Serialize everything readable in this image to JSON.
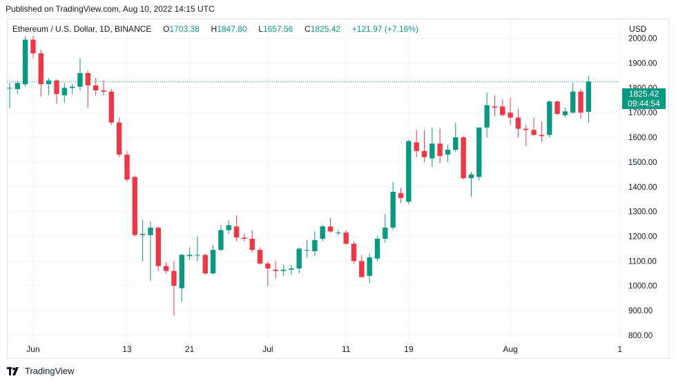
{
  "header": {
    "published": "Published on TradingView.com, Aug 10, 2022 14:15 UTC"
  },
  "legend": {
    "symbol": "Ethereum / U.S. Dollar, 1D, BINANCE",
    "o_label": "O",
    "o_value": "1703.38",
    "h_label": "H",
    "h_value": "1847.80",
    "l_label": "L",
    "l_value": "1657.56",
    "c_label": "C",
    "c_value": "1825.42",
    "change": "+121.97 (+7.16%)"
  },
  "axis": {
    "currency": "USD"
  },
  "last_price": {
    "price": "1825.42",
    "countdown": "09:44:54"
  },
  "footer": {
    "brand": "TradingView"
  },
  "colors": {
    "up": "#089981",
    "down": "#F23645",
    "grid": "#F0F3FA",
    "text": "#131722"
  },
  "chart_data": {
    "type": "candlestick",
    "y_axis": {
      "min": 780,
      "max": 2080,
      "ticks": [
        800,
        900,
        1000,
        1100,
        1200,
        1300,
        1400,
        1500,
        1600,
        1700,
        1800,
        1900,
        2000
      ],
      "tick_labels": [
        "800.00",
        "900.00",
        "1000.00",
        "1100.00",
        "1200.00",
        "1300.00",
        "1400.00",
        "1500.00",
        "1600.00",
        "1700.00",
        "1800.00",
        "1900.00",
        "2000.00"
      ]
    },
    "x_axis": {
      "labels": [
        {
          "day": 3,
          "label": "Jun"
        },
        {
          "day": 15,
          "label": "13"
        },
        {
          "day": 23,
          "label": "21"
        },
        {
          "day": 33,
          "label": "Jul"
        },
        {
          "day": 43,
          "label": "11"
        },
        {
          "day": 51,
          "label": "19"
        },
        {
          "day": 64,
          "label": "Aug"
        },
        {
          "day": 78,
          "label": "1"
        }
      ]
    },
    "candles": [
      {
        "o": 1800,
        "h": 1820,
        "l": 1718,
        "c": 1800
      },
      {
        "o": 1795,
        "h": 1830,
        "l": 1775,
        "c": 1820
      },
      {
        "o": 1815,
        "h": 2010,
        "l": 1805,
        "c": 1995
      },
      {
        "o": 1995,
        "h": 2010,
        "l": 1920,
        "c": 1940
      },
      {
        "o": 1940,
        "h": 1955,
        "l": 1765,
        "c": 1815
      },
      {
        "o": 1815,
        "h": 1840,
        "l": 1770,
        "c": 1830
      },
      {
        "o": 1830,
        "h": 1835,
        "l": 1735,
        "c": 1775
      },
      {
        "o": 1770,
        "h": 1820,
        "l": 1740,
        "c": 1800
      },
      {
        "o": 1800,
        "h": 1815,
        "l": 1775,
        "c": 1805
      },
      {
        "o": 1805,
        "h": 1920,
        "l": 1790,
        "c": 1860
      },
      {
        "o": 1860,
        "h": 1870,
        "l": 1720,
        "c": 1810
      },
      {
        "o": 1810,
        "h": 1840,
        "l": 1770,
        "c": 1790
      },
      {
        "o": 1790,
        "h": 1830,
        "l": 1770,
        "c": 1785
      },
      {
        "o": 1785,
        "h": 1795,
        "l": 1650,
        "c": 1660
      },
      {
        "o": 1660,
        "h": 1680,
        "l": 1520,
        "c": 1530
      },
      {
        "o": 1530,
        "h": 1545,
        "l": 1420,
        "c": 1430
      },
      {
        "o": 1440,
        "h": 1445,
        "l": 1200,
        "c": 1205
      },
      {
        "o": 1205,
        "h": 1265,
        "l": 1100,
        "c": 1210
      },
      {
        "o": 1205,
        "h": 1260,
        "l": 1020,
        "c": 1235
      },
      {
        "o": 1235,
        "h": 1240,
        "l": 1060,
        "c": 1080
      },
      {
        "o": 1080,
        "h": 1095,
        "l": 1050,
        "c": 1060
      },
      {
        "o": 1060,
        "h": 1100,
        "l": 880,
        "c": 1000
      },
      {
        "o": 990,
        "h": 1130,
        "l": 935,
        "c": 1125
      },
      {
        "o": 1120,
        "h": 1155,
        "l": 1105,
        "c": 1125
      },
      {
        "o": 1125,
        "h": 1200,
        "l": 1100,
        "c": 1125
      },
      {
        "o": 1125,
        "h": 1130,
        "l": 1045,
        "c": 1050
      },
      {
        "o": 1050,
        "h": 1165,
        "l": 1045,
        "c": 1145
      },
      {
        "o": 1145,
        "h": 1245,
        "l": 1140,
        "c": 1225
      },
      {
        "o": 1225,
        "h": 1265,
        "l": 1210,
        "c": 1245
      },
      {
        "o": 1240,
        "h": 1285,
        "l": 1180,
        "c": 1195
      },
      {
        "o": 1195,
        "h": 1210,
        "l": 1180,
        "c": 1190
      },
      {
        "o": 1190,
        "h": 1225,
        "l": 1135,
        "c": 1145
      },
      {
        "o": 1145,
        "h": 1155,
        "l": 1085,
        "c": 1090
      },
      {
        "o": 1090,
        "h": 1100,
        "l": 1000,
        "c": 1070
      },
      {
        "o": 1065,
        "h": 1100,
        "l": 1030,
        "c": 1060
      },
      {
        "o": 1060,
        "h": 1085,
        "l": 1040,
        "c": 1065
      },
      {
        "o": 1065,
        "h": 1085,
        "l": 1045,
        "c": 1070
      },
      {
        "o": 1070,
        "h": 1155,
        "l": 1050,
        "c": 1150
      },
      {
        "o": 1145,
        "h": 1185,
        "l": 1115,
        "c": 1145
      },
      {
        "o": 1140,
        "h": 1220,
        "l": 1120,
        "c": 1185
      },
      {
        "o": 1190,
        "h": 1245,
        "l": 1180,
        "c": 1240
      },
      {
        "o": 1240,
        "h": 1275,
        "l": 1215,
        "c": 1220
      },
      {
        "o": 1215,
        "h": 1225,
        "l": 1205,
        "c": 1215
      },
      {
        "o": 1215,
        "h": 1225,
        "l": 1165,
        "c": 1170
      },
      {
        "o": 1170,
        "h": 1180,
        "l": 1090,
        "c": 1100
      },
      {
        "o": 1100,
        "h": 1125,
        "l": 1035,
        "c": 1035
      },
      {
        "o": 1040,
        "h": 1130,
        "l": 1010,
        "c": 1115
      },
      {
        "o": 1110,
        "h": 1200,
        "l": 1100,
        "c": 1190
      },
      {
        "o": 1190,
        "h": 1290,
        "l": 1175,
        "c": 1235
      },
      {
        "o": 1235,
        "h": 1420,
        "l": 1225,
        "c": 1380
      },
      {
        "o": 1375,
        "h": 1395,
        "l": 1335,
        "c": 1355
      },
      {
        "o": 1340,
        "h": 1590,
        "l": 1330,
        "c": 1585
      },
      {
        "o": 1580,
        "h": 1630,
        "l": 1520,
        "c": 1545
      },
      {
        "o": 1545,
        "h": 1630,
        "l": 1500,
        "c": 1520
      },
      {
        "o": 1515,
        "h": 1640,
        "l": 1480,
        "c": 1575
      },
      {
        "o": 1575,
        "h": 1635,
        "l": 1495,
        "c": 1525
      },
      {
        "o": 1530,
        "h": 1570,
        "l": 1500,
        "c": 1550
      },
      {
        "o": 1550,
        "h": 1660,
        "l": 1540,
        "c": 1600
      },
      {
        "o": 1600,
        "h": 1605,
        "l": 1430,
        "c": 1435
      },
      {
        "o": 1435,
        "h": 1460,
        "l": 1360,
        "c": 1450
      },
      {
        "o": 1440,
        "h": 1640,
        "l": 1425,
        "c": 1640
      },
      {
        "o": 1640,
        "h": 1780,
        "l": 1600,
        "c": 1730
      },
      {
        "o": 1725,
        "h": 1770,
        "l": 1685,
        "c": 1720
      },
      {
        "o": 1725,
        "h": 1755,
        "l": 1685,
        "c": 1690
      },
      {
        "o": 1700,
        "h": 1760,
        "l": 1650,
        "c": 1680
      },
      {
        "o": 1680,
        "h": 1715,
        "l": 1600,
        "c": 1635
      },
      {
        "o": 1635,
        "h": 1650,
        "l": 1565,
        "c": 1630
      },
      {
        "o": 1630,
        "h": 1680,
        "l": 1605,
        "c": 1610
      },
      {
        "o": 1610,
        "h": 1665,
        "l": 1580,
        "c": 1605
      },
      {
        "o": 1610,
        "h": 1750,
        "l": 1600,
        "c": 1745
      },
      {
        "o": 1745,
        "h": 1750,
        "l": 1690,
        "c": 1695
      },
      {
        "o": 1690,
        "h": 1720,
        "l": 1680,
        "c": 1705
      },
      {
        "o": 1700,
        "h": 1820,
        "l": 1695,
        "c": 1785
      },
      {
        "o": 1785,
        "h": 1795,
        "l": 1675,
        "c": 1700
      },
      {
        "o": 1703.38,
        "h": 1847.8,
        "l": 1657.56,
        "c": 1825.42
      }
    ]
  }
}
